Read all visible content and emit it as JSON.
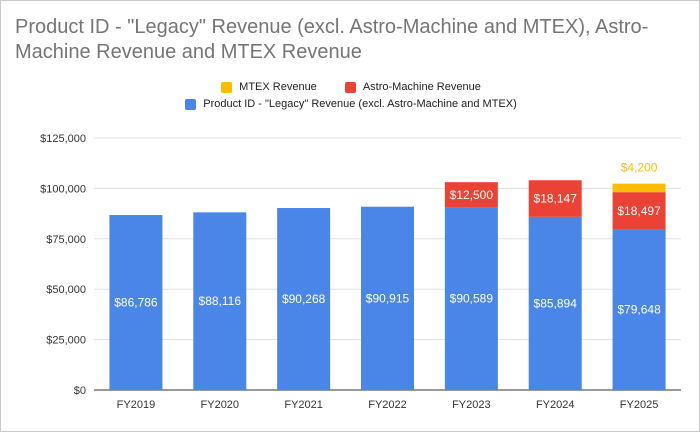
{
  "chart_data": {
    "type": "bar",
    "stacked": true,
    "title": "Product ID - \"Legacy\" Revenue (excl. Astro-Machine and MTEX), Astro-Machine Revenue and MTEX Revenue",
    "categories": [
      "FY2019",
      "FY2020",
      "FY2021",
      "FY2022",
      "FY2023",
      "FY2024",
      "FY2025"
    ],
    "series": [
      {
        "name": "Product ID - \"Legacy\" Revenue (excl. Astro-Machine and MTEX)",
        "color": "#4a86e8",
        "values": [
          86786,
          88116,
          90268,
          90915,
          90589,
          85894,
          79648
        ],
        "labels": [
          "$86,786",
          "$88,116",
          "$90,268",
          "$90,915",
          "$90,589",
          "$85,894",
          "$79,648"
        ]
      },
      {
        "name": "Astro-Machine Revenue",
        "color": "#ea4335",
        "values": [
          0,
          0,
          0,
          0,
          12500,
          18147,
          18497
        ],
        "labels": [
          "",
          "",
          "",
          "",
          "$12,500",
          "$18,147",
          "$18,497"
        ]
      },
      {
        "name": "MTEX Revenue",
        "color": "#fbbc04",
        "values": [
          0,
          0,
          0,
          0,
          0,
          0,
          4200
        ],
        "labels": [
          "",
          "",
          "",
          "",
          "",
          "",
          "$4,200"
        ]
      }
    ],
    "ylim": [
      0,
      125000
    ],
    "yticks": [
      0,
      25000,
      50000,
      75000,
      100000,
      125000
    ],
    "ytick_labels": [
      "$0",
      "$25,000",
      "$50,000",
      "$75,000",
      "$100,000",
      "$125,000"
    ],
    "legend_position": "top",
    "grid": true,
    "xlabel": "",
    "ylabel": ""
  }
}
